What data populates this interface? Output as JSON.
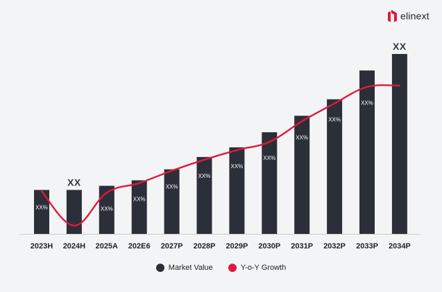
{
  "brand": {
    "name": "elinext",
    "mark_color": "#e3173f"
  },
  "chart_data": {
    "type": "bar",
    "categories": [
      "2023H",
      "2024H",
      "2025A",
      "202E6",
      "2027P",
      "2028P",
      "2029P",
      "2030P",
      "2031P",
      "2032P",
      "2033P",
      "2034P"
    ],
    "series": [
      {
        "name": "Market Value",
        "type": "bar",
        "color": "#2b2f38",
        "values": [
          32,
          32,
          35,
          39,
          47,
          56,
          63,
          74,
          86,
          98,
          119,
          131
        ],
        "labels": [
          "XX%",
          "",
          "XX%",
          "XX%",
          "XX%",
          "XX%",
          "XX%",
          "XX%",
          "XX%",
          "XX%",
          "XX%",
          ""
        ]
      },
      {
        "name": "Y-o-Y Growth",
        "type": "line",
        "color": "#e3173f",
        "values": [
          31,
          6,
          30,
          37,
          46,
          54,
          61,
          67,
          82,
          95,
          107,
          108
        ]
      }
    ],
    "top_labels": [
      "",
      "XX",
      "",
      "",
      "",
      "",
      "",
      "",
      "",
      "",
      "",
      "XX"
    ],
    "ylim": [
      0,
      131
    ],
    "legend_position": "bottom-center",
    "grid": false
  }
}
